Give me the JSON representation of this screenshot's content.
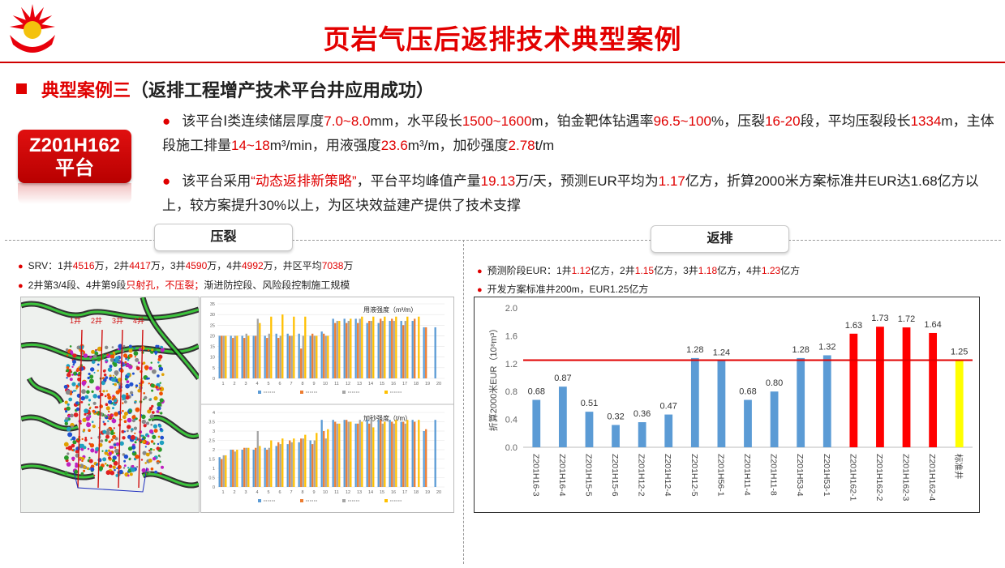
{
  "header": {
    "title": "页岩气压后返排技术典型案例",
    "logo_icon": "petrochina-logo-icon"
  },
  "section": {
    "prefix": "典型案例三",
    "suffix": "（返排工程增产技术平台井应用成功）"
  },
  "platform_badge": {
    "line1": "Z201H162",
    "line2": "平台"
  },
  "para1": [
    {
      "t": "该平台Ⅰ类连续储层厚度",
      "r": false
    },
    {
      "t": "7.0~8.0",
      "r": true
    },
    {
      "t": "mm，水平段长",
      "r": false
    },
    {
      "t": "1500~1600",
      "r": true
    },
    {
      "t": "m，铂金靶体钻遇率",
      "r": false
    },
    {
      "t": "96.5~100",
      "r": true
    },
    {
      "t": "%，压裂",
      "r": false
    },
    {
      "t": "16-20",
      "r": true
    },
    {
      "t": "段，平均压裂段长",
      "r": false
    },
    {
      "t": "1334",
      "r": true
    },
    {
      "t": "m，主体段施工排量",
      "r": false
    },
    {
      "t": "14~18",
      "r": true
    },
    {
      "t": "m³/min，用液强度",
      "r": false
    },
    {
      "t": "23.6",
      "r": true
    },
    {
      "t": "m³/m，加砂强度",
      "r": false
    },
    {
      "t": "2.78",
      "r": true
    },
    {
      "t": "t/m",
      "r": false
    }
  ],
  "para2": [
    {
      "t": "该平台采用",
      "r": false
    },
    {
      "t": "“动态返排新策略”",
      "r": true
    },
    {
      "t": "，平台平均峰值产量",
      "r": false
    },
    {
      "t": "19.13",
      "r": true
    },
    {
      "t": "万/天，预测EUR平均为",
      "r": false
    },
    {
      "t": "1.17",
      "r": true
    },
    {
      "t": "亿方，折算2000米方案标准井EUR达1.68亿方以上，较方案提升30%以上，为区块效益建产提供了技术支撑",
      "r": false
    }
  ],
  "tabs": {
    "left": "压裂",
    "right": "返排"
  },
  "left_notes": [
    [
      {
        "t": "SRV：1井",
        "r": false
      },
      {
        "t": "4516",
        "r": true
      },
      {
        "t": "万，2井",
        "r": false
      },
      {
        "t": "4417",
        "r": true
      },
      {
        "t": "万，3井",
        "r": false
      },
      {
        "t": "4590",
        "r": true
      },
      {
        "t": "万，4井",
        "r": false
      },
      {
        "t": "4992",
        "r": true
      },
      {
        "t": "万，井区平均",
        "r": false
      },
      {
        "t": "7038",
        "r": true
      },
      {
        "t": "万",
        "r": false
      }
    ],
    [
      {
        "t": "2井第3/4段、4井第9段",
        "r": false
      },
      {
        "t": "只射孔，不压裂；",
        "r": true
      },
      {
        "t": "渐进防控段、风险段控制施工规模",
        "r": false
      }
    ]
  ],
  "right_notes": [
    [
      {
        "t": "预测阶段EUR：1井",
        "r": false
      },
      {
        "t": "1.12",
        "r": true
      },
      {
        "t": "亿方，2井",
        "r": false
      },
      {
        "t": "1.15",
        "r": true
      },
      {
        "t": "亿方，3井",
        "r": false
      },
      {
        "t": "1.18",
        "r": true
      },
      {
        "t": "亿方，4井",
        "r": false
      },
      {
        "t": "1.23",
        "r": true
      },
      {
        "t": "亿方",
        "r": false
      }
    ],
    [
      {
        "t": "开发方案标准井200m，EUR1.25亿方",
        "r": false
      }
    ]
  ],
  "frac_map": {
    "well_labels": [
      "1井",
      "2井",
      "3井",
      "4井"
    ],
    "colors": [
      "#e02020",
      "#2a9a2a",
      "#2050d0",
      "#e0a000",
      "#c020c0",
      "#20a0c0",
      "#888888",
      "#f05000"
    ]
  },
  "chart_data": [
    {
      "type": "bar",
      "title": "用液强度（m³/m）",
      "categories": [
        "1",
        "2",
        "3",
        "4",
        "5",
        "6",
        "7",
        "8",
        "9",
        "10",
        "11",
        "12",
        "13",
        "14",
        "15",
        "16",
        "17",
        "18",
        "19",
        "20"
      ],
      "ylim": [
        0,
        35
      ],
      "yticks": [
        0,
        5,
        10,
        15,
        20,
        25,
        30,
        35
      ],
      "series_colors": [
        "#5b9bd5",
        "#ed7d31",
        "#a5a5a5",
        "#ffc000"
      ],
      "series_count": 4,
      "series": [
        {
          "values": [
            20,
            20,
            20,
            20,
            20,
            21,
            21,
            21,
            20,
            22,
            28,
            28,
            28,
            26,
            26,
            27,
            27,
            27,
            24,
            24
          ]
        },
        {
          "values": [
            20,
            19,
            19,
            20,
            19,
            19,
            20,
            14,
            21,
            21,
            26,
            26,
            26,
            27,
            28,
            28,
            25,
            28,
            24,
            0
          ]
        },
        {
          "values": [
            20,
            20,
            21,
            28,
            21,
            20,
            20,
            20,
            20,
            20,
            27,
            27,
            28,
            27,
            27,
            27,
            27,
            0,
            0,
            0
          ]
        },
        {
          "values": [
            20,
            20,
            20,
            26,
            29,
            30,
            29,
            29,
            20,
            20,
            27,
            28,
            29,
            29,
            29,
            29,
            29,
            29,
            0,
            0
          ]
        }
      ]
    },
    {
      "type": "bar",
      "title": "加砂强度（t/m）",
      "categories": [
        "1",
        "2",
        "3",
        "4",
        "5",
        "6",
        "7",
        "8",
        "9",
        "10",
        "11",
        "12",
        "13",
        "14",
        "15",
        "16",
        "17",
        "18",
        "19",
        "20"
      ],
      "ylim": [
        0,
        4
      ],
      "yticks": [
        0,
        0.5,
        1,
        1.5,
        2,
        2.5,
        3,
        3.5,
        4
      ],
      "series_colors": [
        "#5b9bd5",
        "#ed7d31",
        "#a5a5a5",
        "#ffc000"
      ],
      "series_count": 4,
      "series": [
        {
          "values": [
            1.6,
            2.0,
            2.0,
            2.0,
            2.1,
            2.2,
            2.3,
            2.4,
            2.5,
            3.6,
            3.6,
            3.6,
            3.4,
            3.6,
            3.6,
            3.6,
            3.5,
            3.6,
            3.0,
            3.6
          ]
        },
        {
          "values": [
            1.5,
            2.0,
            2.1,
            2.1,
            2.0,
            2.4,
            2.5,
            2.6,
            2.3,
            3.0,
            3.5,
            3.6,
            3.4,
            3.4,
            3.6,
            3.5,
            3.5,
            3.5,
            3.1,
            0
          ]
        },
        {
          "values": [
            1.7,
            1.9,
            2.1,
            3.0,
            2.1,
            2.3,
            2.4,
            2.6,
            2.5,
            2.6,
            3.4,
            3.5,
            3.6,
            3.6,
            3.4,
            3.4,
            3.4,
            0,
            0,
            0
          ]
        },
        {
          "values": [
            1.7,
            2.0,
            2.1,
            2.2,
            2.5,
            2.6,
            2.6,
            2.8,
            2.9,
            3.1,
            3.4,
            3.5,
            3.5,
            3.2,
            3.5,
            3.6,
            3.6,
            3.6,
            0,
            0
          ]
        }
      ]
    },
    {
      "type": "bar",
      "ylabel": "折算2000米EUR（10⁸m³）",
      "categories": [
        "Z201H16-3",
        "Z201H16-4",
        "Z201H15-5",
        "Z201H15-6",
        "Z201H12-2",
        "Z201H12-4",
        "Z201H12-5",
        "Z201H56-1",
        "Z201H11-4",
        "Z201H11-8",
        "Z201H53-4",
        "Z201H53-1",
        "Z201H162-1",
        "Z201H162-2",
        "Z201H162-3",
        "Z201H162-4",
        "标准井"
      ],
      "values": [
        0.68,
        0.87,
        0.51,
        0.32,
        0.36,
        0.47,
        1.28,
        1.24,
        0.68,
        0.8,
        1.28,
        1.32,
        1.63,
        1.73,
        1.72,
        1.64,
        1.25
      ],
      "value_labels": [
        "0.68",
        "0.87",
        "0.51",
        "0.32",
        "0.36",
        "0.47",
        "1.28",
        "1.24",
        "0.68",
        "0.80",
        "1.28",
        "1.32",
        "1.63",
        "1.73",
        "1.72",
        "1.64",
        "1.25"
      ],
      "bar_colors": [
        "#5b9bd5",
        "#5b9bd5",
        "#5b9bd5",
        "#5b9bd5",
        "#5b9bd5",
        "#5b9bd5",
        "#5b9bd5",
        "#5b9bd5",
        "#5b9bd5",
        "#5b9bd5",
        "#5b9bd5",
        "#5b9bd5",
        "#ff0000",
        "#ff0000",
        "#ff0000",
        "#ff0000",
        "#ffff00"
      ],
      "ylim": [
        0,
        2.0
      ],
      "yticks": [
        "0.0",
        "0.4",
        "0.8",
        "1.2",
        "1.6",
        "2.0"
      ],
      "reference_line": 1.25,
      "reference_color": "#e00000"
    }
  ]
}
